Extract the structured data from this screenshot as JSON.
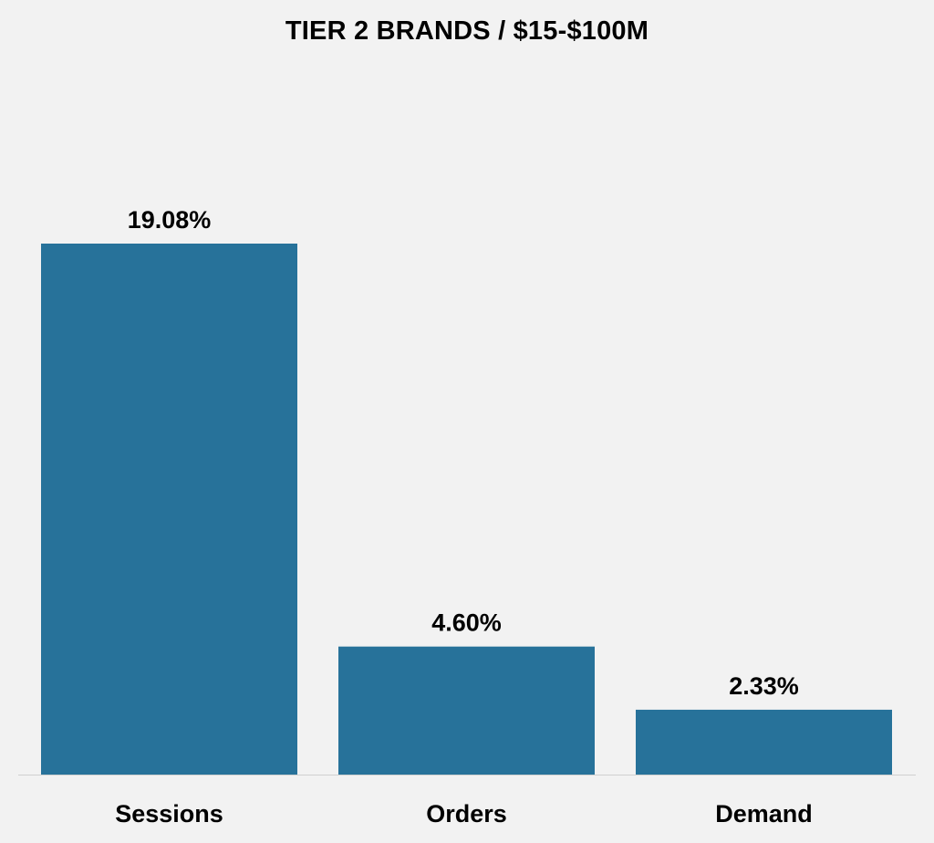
{
  "chart_data": {
    "type": "bar",
    "title": "TIER 2 BRANDS / $15-$100M",
    "categories": [
      "Sessions",
      "Orders",
      "Demand"
    ],
    "values": [
      19.08,
      4.6,
      2.33
    ],
    "data_labels": [
      "19.08%",
      "4.60%",
      "2.33%"
    ],
    "xlabel": "",
    "ylabel": "",
    "ylim": [
      0,
      20
    ],
    "grid": false,
    "legend": "none",
    "y_axis_visible": false,
    "bar_color": "#27729a",
    "background_color": "#f2f2f2",
    "baseline_color": "#d0d0d0"
  }
}
